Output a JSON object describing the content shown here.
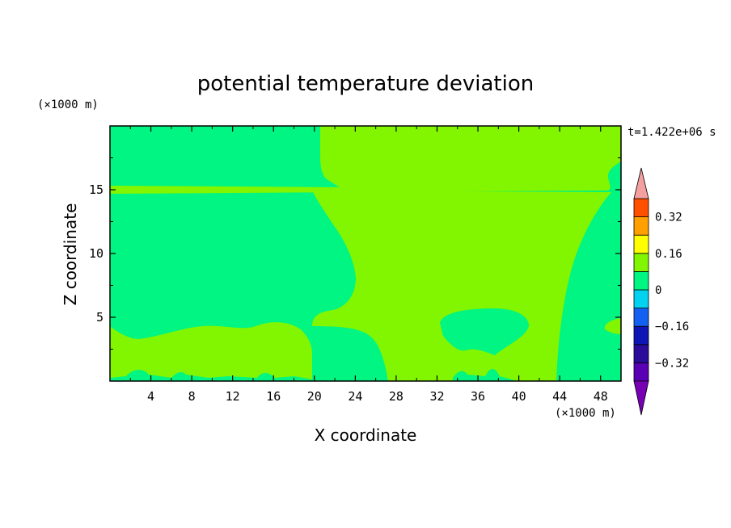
{
  "chart_data": {
    "type": "contour",
    "title": "potential temperature deviation",
    "xlabel": "X coordinate",
    "ylabel": "Z coordinate",
    "x_unit": "(×1000 m)",
    "y_unit": "(×1000 m)",
    "time_label": "t=1.422e+06 s",
    "xlim": [
      0,
      50
    ],
    "ylim": [
      0,
      20
    ],
    "x_ticks": [
      4,
      8,
      12,
      16,
      20,
      24,
      28,
      32,
      36,
      40,
      44,
      48
    ],
    "y_ticks": [
      5,
      10,
      15
    ],
    "colorbar": {
      "levels": [
        -0.4,
        -0.32,
        -0.24,
        -0.16,
        -0.08,
        0,
        0.08,
        0.16,
        0.24,
        0.32,
        0.4
      ],
      "tick_labels": [
        {
          "value": 0.32,
          "label": "0.32"
        },
        {
          "value": 0.16,
          "label": "0.16"
        },
        {
          "value": 0,
          "label": "0"
        },
        {
          "value": -0.16,
          "label": "−0.16"
        },
        {
          "value": -0.32,
          "label": "−0.32"
        }
      ],
      "colors": [
        "#5a00b4",
        "#2a0b9a",
        "#0f14b4",
        "#1460f0",
        "#00d2f0",
        "#00f582",
        "#82f500",
        "#ffff00",
        "#ffa000",
        "#ff5000",
        "#ff1e1e"
      ],
      "over_color": "#f5a0a0",
      "under_color": "#7800b4",
      "extend": "both"
    },
    "regions": [
      {
        "band": "0 to 0.08",
        "color": "#82f500"
      },
      {
        "band": "-0.08 to 0",
        "color": "#00f582"
      }
    ]
  }
}
